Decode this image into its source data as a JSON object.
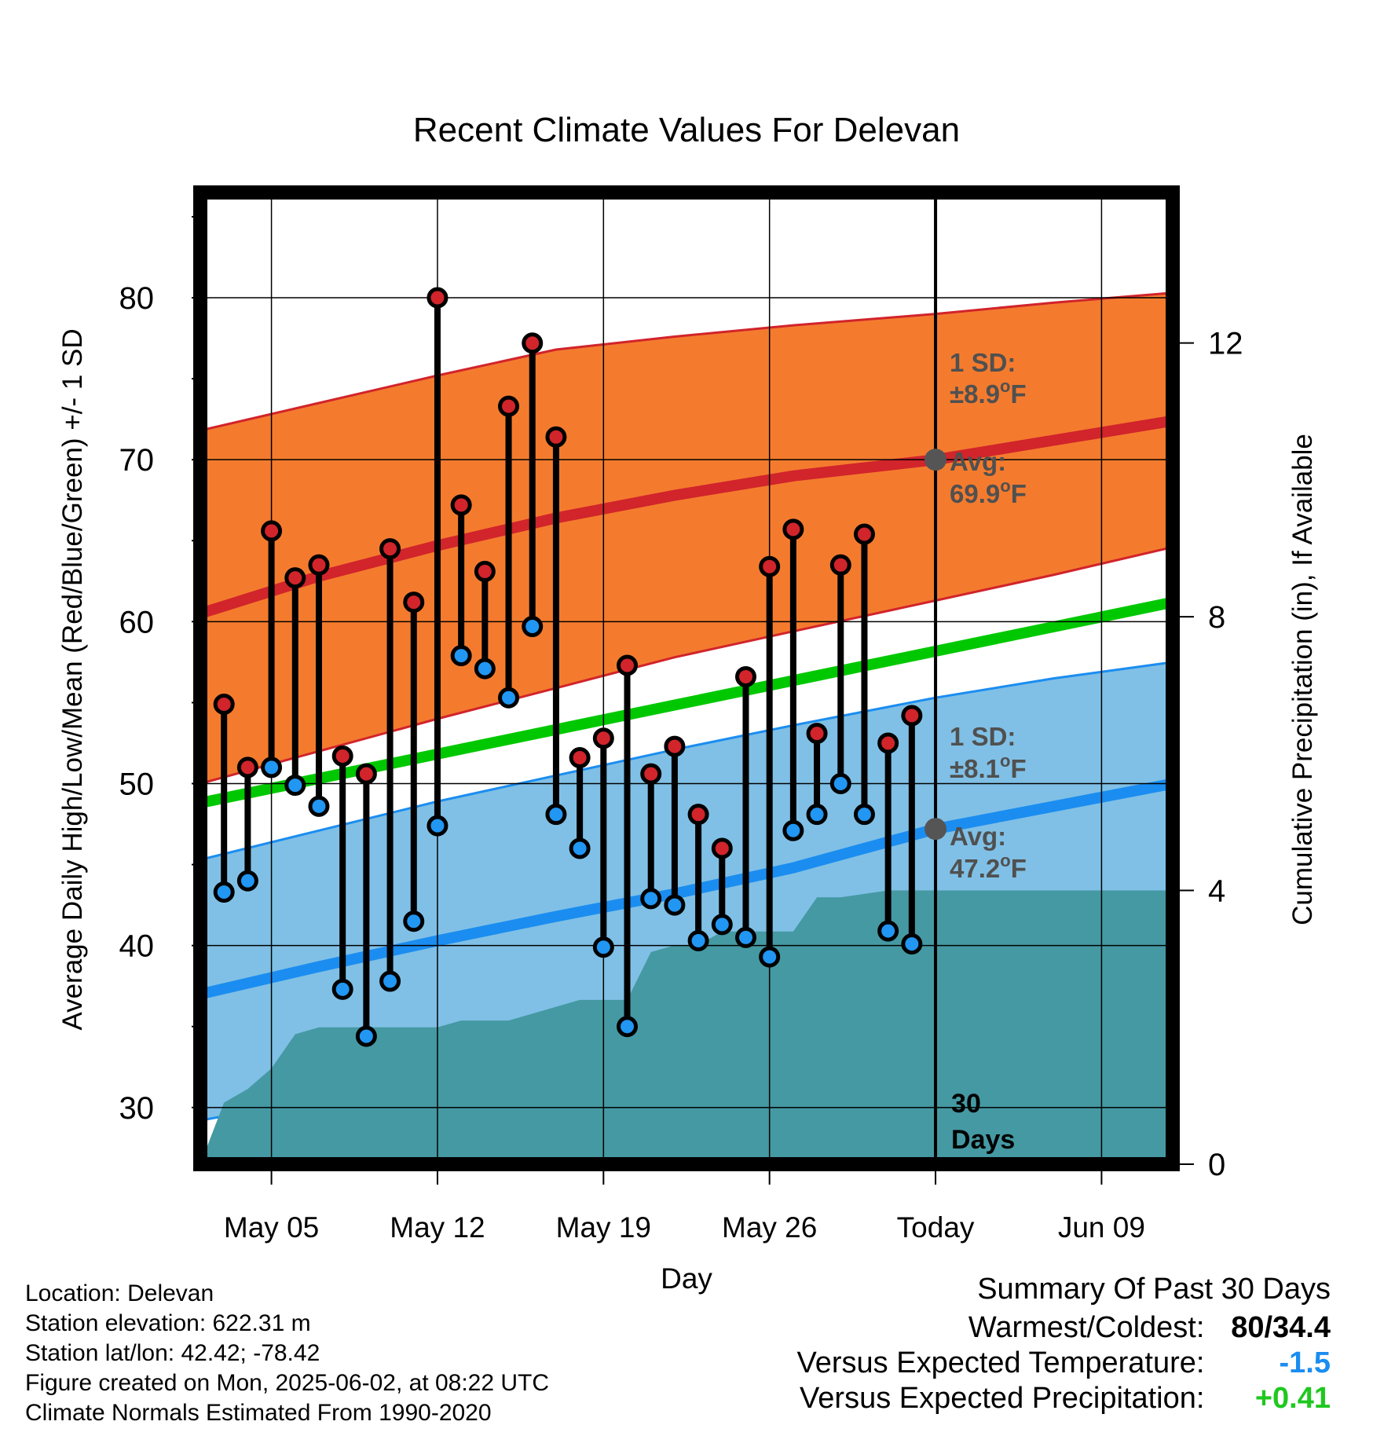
{
  "chart_data": {
    "type": "line",
    "title": "Recent Climate Values For Delevan",
    "xlabel": "Day",
    "ylabel": "Average Daily High/Low/Mean (Red/Blue/Green) +/- 1 SD",
    "y2label": "Cumulative Precipitation (in), If Available",
    "ylim": [
      26.5,
      86.5
    ],
    "y_ticks": [
      30,
      40,
      50,
      60,
      70,
      80
    ],
    "y2lim": [
      0,
      14.2
    ],
    "y2_ticks": [
      0,
      4,
      8,
      12
    ],
    "x_start": "2025-05-02",
    "x_end": "2025-06-12",
    "x_ticks": [
      {
        "date": "2025-05-05",
        "label": "May 05"
      },
      {
        "date": "2025-05-12",
        "label": "May 12"
      },
      {
        "date": "2025-05-19",
        "label": "May 19"
      },
      {
        "date": "2025-05-26",
        "label": "May 26"
      },
      {
        "date": "2025-06-02",
        "label": "Today"
      },
      {
        "date": "2025-06-09",
        "label": "Jun 09"
      }
    ],
    "today": "2025-06-02",
    "period_label": [
      "30",
      "Days"
    ],
    "daily": [
      {
        "date": "2025-05-03",
        "high": 54.9,
        "low": 43.3
      },
      {
        "date": "2025-05-04",
        "high": 51.0,
        "low": 44.0
      },
      {
        "date": "2025-05-05",
        "high": 65.6,
        "low": 51.0
      },
      {
        "date": "2025-05-06",
        "high": 62.7,
        "low": 49.9
      },
      {
        "date": "2025-05-07",
        "high": 63.5,
        "low": 48.6
      },
      {
        "date": "2025-05-08",
        "high": 51.7,
        "low": 37.3
      },
      {
        "date": "2025-05-09",
        "high": 50.6,
        "low": 34.4
      },
      {
        "date": "2025-05-10",
        "high": 64.5,
        "low": 37.8
      },
      {
        "date": "2025-05-11",
        "high": 61.2,
        "low": 41.5
      },
      {
        "date": "2025-05-12",
        "high": 80.0,
        "low": 47.4
      },
      {
        "date": "2025-05-13",
        "high": 67.2,
        "low": 57.9
      },
      {
        "date": "2025-05-14",
        "high": 63.1,
        "low": 57.1
      },
      {
        "date": "2025-05-15",
        "high": 73.3,
        "low": 55.3
      },
      {
        "date": "2025-05-16",
        "high": 77.2,
        "low": 59.7
      },
      {
        "date": "2025-05-17",
        "high": 71.4,
        "low": 48.1
      },
      {
        "date": "2025-05-18",
        "high": 51.6,
        "low": 46.0
      },
      {
        "date": "2025-05-19",
        "high": 52.8,
        "low": 39.9
      },
      {
        "date": "2025-05-20",
        "high": 57.3,
        "low": 35.0
      },
      {
        "date": "2025-05-21",
        "high": 50.6,
        "low": 42.9
      },
      {
        "date": "2025-05-22",
        "high": 52.3,
        "low": 42.5
      },
      {
        "date": "2025-05-23",
        "high": 48.1,
        "low": 40.3
      },
      {
        "date": "2025-05-24",
        "high": 46.0,
        "low": 41.3
      },
      {
        "date": "2025-05-25",
        "high": 56.6,
        "low": 40.5
      },
      {
        "date": "2025-05-26",
        "high": 63.4,
        "low": 39.3
      },
      {
        "date": "2025-05-27",
        "high": 65.7,
        "low": 47.1
      },
      {
        "date": "2025-05-28",
        "high": 53.1,
        "low": 48.1
      },
      {
        "date": "2025-05-29",
        "high": 63.5,
        "low": 50.0
      },
      {
        "date": "2025-05-30",
        "high": 65.4,
        "low": 48.1
      },
      {
        "date": "2025-05-31",
        "high": 52.5,
        "low": 40.9
      },
      {
        "date": "2025-06-01",
        "high": 54.2,
        "low": 40.1
      }
    ],
    "normal_high": {
      "dates": [
        "2025-05-02",
        "2025-05-07",
        "2025-05-12",
        "2025-05-17",
        "2025-05-22",
        "2025-05-27",
        "2025-06-02",
        "2025-06-07",
        "2025-06-12"
      ],
      "avg": [
        60.5,
        62.8,
        64.7,
        66.4,
        67.8,
        69.0,
        70.0,
        71.2,
        72.4
      ],
      "upper": [
        71.8,
        73.5,
        75.2,
        76.8,
        77.6,
        78.3,
        79.0,
        79.7,
        80.3
      ],
      "lower": [
        50.0,
        52.0,
        54.0,
        55.9,
        57.8,
        59.4,
        61.3,
        62.9,
        64.6
      ]
    },
    "normal_low": {
      "dates": [
        "2025-05-02",
        "2025-05-07",
        "2025-05-12",
        "2025-05-17",
        "2025-05-22",
        "2025-05-27",
        "2025-06-02",
        "2025-06-07",
        "2025-06-12"
      ],
      "avg": [
        37.0,
        38.7,
        40.3,
        41.8,
        43.2,
        44.8,
        47.2,
        48.6,
        50.0
      ],
      "upper": [
        45.3,
        47.1,
        48.9,
        50.5,
        52.1,
        53.6,
        55.3,
        56.5,
        57.5
      ],
      "lower": [
        29.2,
        30.5,
        32.2,
        33.9,
        35.6,
        37.1,
        39.0,
        41.1,
        43.1
      ]
    },
    "normal_mean": {
      "dates": [
        "2025-05-02",
        "2025-06-12"
      ],
      "avg": [
        48.8,
        61.2
      ]
    },
    "precip": {
      "dates": [
        "2025-05-02",
        "2025-05-03",
        "2025-05-04",
        "2025-05-05",
        "2025-05-06",
        "2025-05-07",
        "2025-05-12",
        "2025-05-13",
        "2025-05-15",
        "2025-05-16",
        "2025-05-17",
        "2025-05-18",
        "2025-05-19",
        "2025-05-20",
        "2025-05-21",
        "2025-05-22",
        "2025-05-23",
        "2025-05-24",
        "2025-05-25",
        "2025-05-26",
        "2025-05-27",
        "2025-05-28",
        "2025-05-29",
        "2025-05-31",
        "2025-06-12"
      ],
      "values": [
        0.0,
        0.9,
        1.1,
        1.4,
        1.9,
        2.0,
        2.0,
        2.1,
        2.1,
        2.2,
        2.3,
        2.4,
        2.4,
        2.4,
        3.1,
        3.2,
        3.2,
        3.4,
        3.4,
        3.4,
        3.4,
        3.9,
        3.9,
        4.0,
        4.0
      ]
    },
    "annotations": {
      "high_sd_label": "1 SD:",
      "high_sd_value": "±8.9°F",
      "high_avg_label": "Avg:",
      "high_avg_value": "69.9°F",
      "low_sd_label": "1 SD:",
      "low_sd_value": "±8.1°F",
      "low_avg_label": "Avg:",
      "low_avg_value": "47.2°F"
    },
    "colors": {
      "high_band": "#f47b2e",
      "high_line": "#d1242b",
      "low_band": "#80c0e6",
      "low_line": "#1b8df0",
      "mean_line": "#00c800",
      "precip": "#4599a3",
      "high_dot": "#d1242b",
      "low_dot": "#2196f3",
      "annotation_text": "#505050"
    },
    "grid": true
  },
  "info": {
    "location": "Location: Delevan",
    "elevation": "Station elevation: 622.31 m",
    "latlon": "Station lat/lon: 42.42; -78.42",
    "created": "Figure created on Mon, 2025-06-02, at 08:22 UTC",
    "normals": "Climate Normals Estimated From 1990-2020"
  },
  "summary": {
    "title": "Summary Of Past 30 Days",
    "warmest_label": "Warmest/Coldest:",
    "warmest_value": "80/34.4",
    "temp_label": "Versus Expected Temperature:",
    "temp_value": "-1.5",
    "temp_color": "#1b8df0",
    "precip_label": "Versus Expected Precipitation:",
    "precip_value": "+0.41",
    "precip_color": "#1fc81f"
  }
}
